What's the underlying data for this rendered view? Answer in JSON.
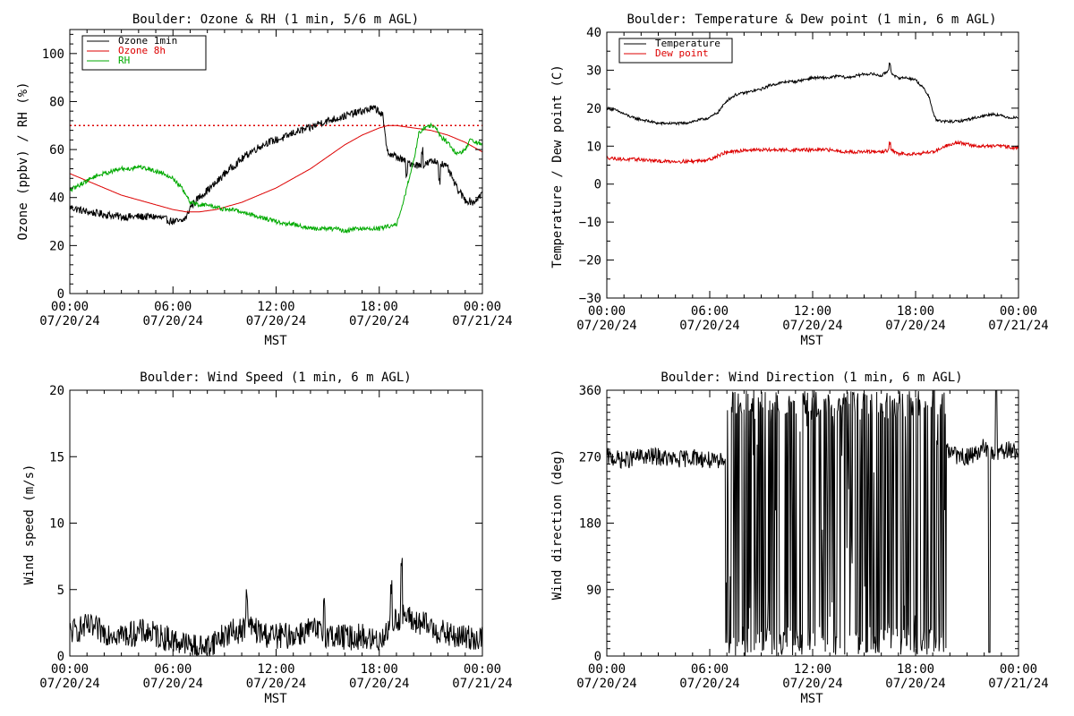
{
  "chart_data": [
    {
      "type": "line",
      "title": "Boulder: Ozone & RH (1 min, 5/6 m AGL)",
      "ylabel": "Ozone (ppbv) / RH (%)",
      "xlabel": "MST",
      "xlim": [
        0,
        24
      ],
      "ylim": [
        0,
        110
      ],
      "yticks": [
        0,
        20,
        40,
        60,
        80,
        100
      ],
      "ytick_labels": [
        "0",
        "20",
        "40",
        "60",
        "80",
        "100"
      ],
      "ytick_minor": 5,
      "xticks": [
        0,
        6,
        12,
        18,
        24
      ],
      "xtick_labels": [
        [
          "00:00",
          "07/20/24"
        ],
        [
          "06:00",
          "07/20/24"
        ],
        [
          "12:00",
          "07/20/24"
        ],
        [
          "18:00",
          "07/20/24"
        ],
        [
          "00:00",
          "07/21/24"
        ]
      ],
      "legend": "top-left",
      "series": [
        {
          "name": "Ozone 1min",
          "color": "#000000",
          "noise": 1.6,
          "spikes": [
            [
              19.6,
              -6
            ],
            [
              20.5,
              7
            ],
            [
              21.5,
              -8
            ]
          ],
          "x": [
            0,
            1,
            2,
            3,
            4,
            5,
            5.5,
            6,
            6.5,
            6.8,
            7,
            7.5,
            8,
            8.5,
            9,
            9.5,
            10,
            10.5,
            11,
            11.5,
            12,
            12.5,
            13,
            13.5,
            14,
            14.5,
            15,
            15.5,
            16,
            16.5,
            17,
            17.5,
            17.8,
            18,
            18.2,
            18.4,
            18.6,
            19,
            19.5,
            20,
            20.5,
            21,
            21.5,
            22,
            22.5,
            23,
            23.5,
            24
          ],
          "y": [
            36,
            34,
            33,
            32,
            32,
            32,
            31,
            30,
            30,
            32,
            36,
            40,
            43,
            46,
            50,
            53,
            56,
            59,
            61,
            63,
            64,
            65,
            67,
            68,
            69,
            71,
            72,
            73,
            74,
            75,
            76,
            77,
            77,
            76,
            74,
            62,
            58,
            57,
            55,
            54,
            53,
            55,
            55,
            52,
            44,
            39,
            38,
            42
          ]
        },
        {
          "name": "Ozone 8h",
          "color": "#dd0000",
          "noise": 0,
          "x": [
            0,
            1,
            2,
            3,
            4,
            5,
            6,
            6.8,
            7.5,
            8.5,
            9,
            10,
            11,
            12,
            13,
            14,
            15,
            16,
            17,
            18,
            18.5,
            19,
            20,
            21,
            22,
            23,
            24
          ],
          "y": [
            50,
            47,
            44,
            41,
            39,
            37,
            35,
            34,
            34,
            35,
            36,
            38,
            41,
            44,
            48,
            52,
            57,
            62,
            66,
            69,
            70,
            70,
            69,
            68,
            66,
            63,
            59
          ]
        },
        {
          "name": "RH",
          "color": "#00aa00",
          "noise": 0.9,
          "x": [
            0,
            0.5,
            1,
            1.5,
            2,
            2.5,
            3,
            3.5,
            4,
            4.5,
            5,
            5.5,
            6,
            6.5,
            7,
            7.5,
            8,
            8.5,
            9,
            9.5,
            10,
            10.5,
            11,
            11.5,
            12,
            12.5,
            13,
            13.5,
            14,
            14.5,
            15,
            15.5,
            16,
            16.5,
            17,
            17.5,
            18,
            18.5,
            19,
            19.3,
            19.5,
            19.7,
            20,
            20.3,
            20.6,
            21,
            21.3,
            21.6,
            22,
            22.5,
            23,
            23.3,
            23.6,
            24
          ],
          "y": [
            43,
            45,
            47,
            49,
            50,
            51,
            52,
            52,
            53,
            52,
            51,
            50,
            48,
            44,
            38,
            37,
            37,
            36,
            35,
            35,
            34,
            33,
            32,
            31,
            30,
            29,
            29,
            28,
            27,
            27,
            27,
            27,
            26,
            27,
            27,
            27,
            27,
            28,
            29,
            35,
            41,
            47,
            55,
            67,
            69,
            70,
            69,
            65,
            63,
            58,
            60,
            64,
            63,
            62
          ]
        }
      ],
      "reference_lines": [
        {
          "y": 70,
          "color": "#dd0000",
          "style": "dotted"
        }
      ]
    },
    {
      "type": "line",
      "title": "Boulder: Temperature & Dew point (1 min, 6 m AGL)",
      "ylabel": "Temperature / Dew point (C)",
      "xlabel": "MST",
      "xlim": [
        0,
        24
      ],
      "ylim": [
        -30,
        40
      ],
      "yticks": [
        -30,
        -20,
        -10,
        0,
        10,
        20,
        30,
        40
      ],
      "ytick_labels": [
        "−30",
        "−20",
        "−10",
        "0",
        "10",
        "20",
        "30",
        "40"
      ],
      "ytick_minor": 2,
      "xticks": [
        0,
        6,
        12,
        18,
        24
      ],
      "xtick_labels": [
        [
          "00:00",
          "07/20/24"
        ],
        [
          "06:00",
          "07/20/24"
        ],
        [
          "12:00",
          "07/20/24"
        ],
        [
          "18:00",
          "07/20/24"
        ],
        [
          "00:00",
          "07/21/24"
        ]
      ],
      "legend": "top-left",
      "series": [
        {
          "name": "Temperature",
          "color": "#000000",
          "noise": 0.35,
          "spikes": [
            [
              16.5,
              1.5
            ]
          ],
          "x": [
            0,
            0.5,
            1,
            1.5,
            2,
            2.5,
            3,
            3.5,
            4,
            4.5,
            5,
            5.5,
            6,
            6.5,
            7,
            7.5,
            8,
            8.5,
            9,
            9.5,
            10,
            10.5,
            11,
            11.5,
            12,
            12.5,
            13,
            13.5,
            14,
            14.5,
            15,
            15.5,
            16,
            16.3,
            16.5,
            16.7,
            17,
            17.5,
            18,
            18.5,
            18.8,
            19,
            19.2,
            19.5,
            20,
            20.5,
            21,
            21.5,
            22,
            22.5,
            23,
            23.5,
            24
          ],
          "y": [
            20,
            19.5,
            18.5,
            17.5,
            17,
            16.5,
            16,
            16,
            16,
            16,
            16.5,
            17,
            17.5,
            19,
            22,
            23.5,
            24,
            24.5,
            25,
            26,
            26.5,
            27,
            27,
            27.5,
            28,
            28,
            28,
            28.5,
            28,
            28.5,
            29,
            29,
            28.5,
            29.5,
            30.5,
            28.5,
            28,
            28,
            27.5,
            25,
            23,
            19,
            17,
            16.5,
            16.5,
            16.5,
            17,
            17.5,
            18,
            18.5,
            18,
            17.5,
            17.5
          ]
        },
        {
          "name": "Dew point",
          "color": "#dd0000",
          "noise": 0.45,
          "spikes": [
            [
              16.5,
              2.0
            ]
          ],
          "x": [
            0,
            1,
            2,
            3,
            4,
            5,
            6,
            6.5,
            7,
            7.5,
            8,
            9,
            10,
            11,
            12,
            13,
            14,
            15,
            16,
            16.5,
            17,
            18,
            19,
            19.5,
            20,
            20.5,
            21,
            21.5,
            22,
            23,
            24
          ],
          "y": [
            7,
            6.5,
            6.5,
            6,
            6,
            6,
            6.5,
            7.5,
            8.5,
            8.5,
            9,
            9,
            9,
            9,
            9,
            9,
            8.5,
            8.5,
            8.5,
            9,
            8,
            8,
            8.5,
            9.5,
            10.5,
            11,
            10.5,
            10,
            10,
            10,
            9.5
          ]
        }
      ]
    },
    {
      "type": "line",
      "title": "Boulder: Wind Speed (1 min, 6 m AGL)",
      "ylabel": "Wind speed (m/s)",
      "xlabel": "MST",
      "xlim": [
        0,
        24
      ],
      "ylim": [
        0,
        20
      ],
      "yticks": [
        0,
        5,
        10,
        15,
        20
      ],
      "ytick_labels": [
        "0",
        "5",
        "10",
        "15",
        "20"
      ],
      "ytick_minor": 1,
      "xticks": [
        0,
        6,
        12,
        18,
        24
      ],
      "xtick_labels": [
        [
          "00:00",
          "07/20/24"
        ],
        [
          "06:00",
          "07/20/24"
        ],
        [
          "12:00",
          "07/20/24"
        ],
        [
          "18:00",
          "07/20/24"
        ],
        [
          "00:00",
          "07/21/24"
        ]
      ],
      "series": [
        {
          "name": "",
          "color": "#000000",
          "noise": 1.0,
          "clip_min": 0,
          "spikes": [
            [
              10.3,
              3.0
            ],
            [
              14.8,
              2.5
            ],
            [
              18.7,
              3.0
            ],
            [
              19.3,
              4.0
            ]
          ],
          "x": [
            0,
            0.5,
            1,
            1.5,
            2,
            2.5,
            3,
            3.5,
            4,
            4.5,
            5,
            5.5,
            6,
            6.5,
            7,
            7.5,
            8,
            8.5,
            9,
            9.5,
            10,
            10.5,
            11,
            11.5,
            12,
            12.5,
            13,
            13.5,
            14,
            14.5,
            15,
            15.5,
            16,
            16.5,
            17,
            17.5,
            18,
            18.5,
            19,
            19.5,
            20,
            20.5,
            21,
            21.5,
            22,
            22.5,
            23,
            23.5,
            24
          ],
          "y": [
            1.8,
            2,
            2.2,
            2,
            1.8,
            1.8,
            1.6,
            1.6,
            1.8,
            1.8,
            1.6,
            1.4,
            1.2,
            1,
            0.8,
            0.6,
            0.8,
            1.2,
            1.6,
            1.8,
            2,
            2.2,
            1.8,
            1.6,
            1.5,
            1.5,
            1.6,
            1.8,
            2,
            1.8,
            1.6,
            1.5,
            1.4,
            1.4,
            1.5,
            1.2,
            1.2,
            2,
            2.8,
            3,
            2.6,
            2.4,
            2.2,
            1.8,
            1.6,
            1.4,
            1.4,
            1.4,
            1.3
          ]
        }
      ]
    },
    {
      "type": "line",
      "title": "Boulder: Wind Direction (1 min, 6 m AGL)",
      "ylabel": "Wind direction (deg)",
      "xlabel": "MST",
      "xlim": [
        0,
        24
      ],
      "ylim": [
        0,
        360
      ],
      "yticks": [
        0,
        90,
        180,
        270,
        360
      ],
      "ytick_labels": [
        "0",
        "90",
        "180",
        "270",
        "360"
      ],
      "ytick_minor": 9,
      "xticks": [
        0,
        6,
        12,
        18,
        24
      ],
      "xtick_labels": [
        [
          "00:00",
          "07/20/24"
        ],
        [
          "06:00",
          "07/20/24"
        ],
        [
          "12:00",
          "07/20/24"
        ],
        [
          "18:00",
          "07/20/24"
        ],
        [
          "00:00",
          "07/21/24"
        ]
      ],
      "series": [
        {
          "name": "",
          "color": "#000000",
          "noise": 12,
          "wrap_from": 6.9,
          "wrap_to": 19.8,
          "wrap_spikes": [
            [
              22.3,
              5
            ],
            [
              22.7,
              360
            ]
          ],
          "x": [
            0,
            1,
            2,
            3,
            4,
            5,
            6,
            6.5,
            7,
            7.5,
            8,
            9,
            10,
            11,
            12,
            13,
            14,
            15,
            16,
            17,
            18,
            19,
            19.5,
            20,
            20.5,
            21,
            21.5,
            22,
            22.5,
            23,
            23.5,
            24
          ],
          "y": [
            270,
            265,
            270,
            270,
            265,
            270,
            265,
            260,
            275,
            320,
            330,
            320,
            310,
            300,
            300,
            290,
            300,
            310,
            310,
            300,
            300,
            290,
            280,
            275,
            270,
            270,
            275,
            285,
            270,
            275,
            280,
            275
          ]
        }
      ]
    }
  ]
}
